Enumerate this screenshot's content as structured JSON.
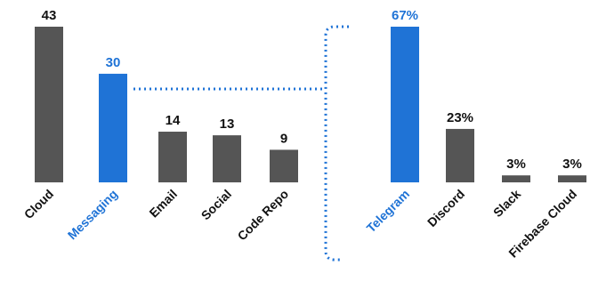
{
  "colors": {
    "bar": "#555555",
    "highlight": "#1f73d6",
    "text": "#111111"
  },
  "chart_data": [
    {
      "type": "bar",
      "categories": [
        "Cloud",
        "Messaging",
        "Email",
        "Social",
        "Code Repo"
      ],
      "values": [
        43,
        30,
        14,
        13,
        9
      ],
      "value_labels": [
        "43",
        "30",
        "14",
        "13",
        "9"
      ],
      "highlight": "Messaging",
      "ylim": [
        0,
        43
      ]
    },
    {
      "type": "bar",
      "categories": [
        "Telegram",
        "Discord",
        "Slack",
        "Firebase Cloud"
      ],
      "values": [
        67,
        23,
        3,
        3
      ],
      "value_labels": [
        "67%",
        "23%",
        "3%",
        "3%"
      ],
      "highlight": "Telegram",
      "ylim": [
        0,
        67
      ]
    }
  ]
}
